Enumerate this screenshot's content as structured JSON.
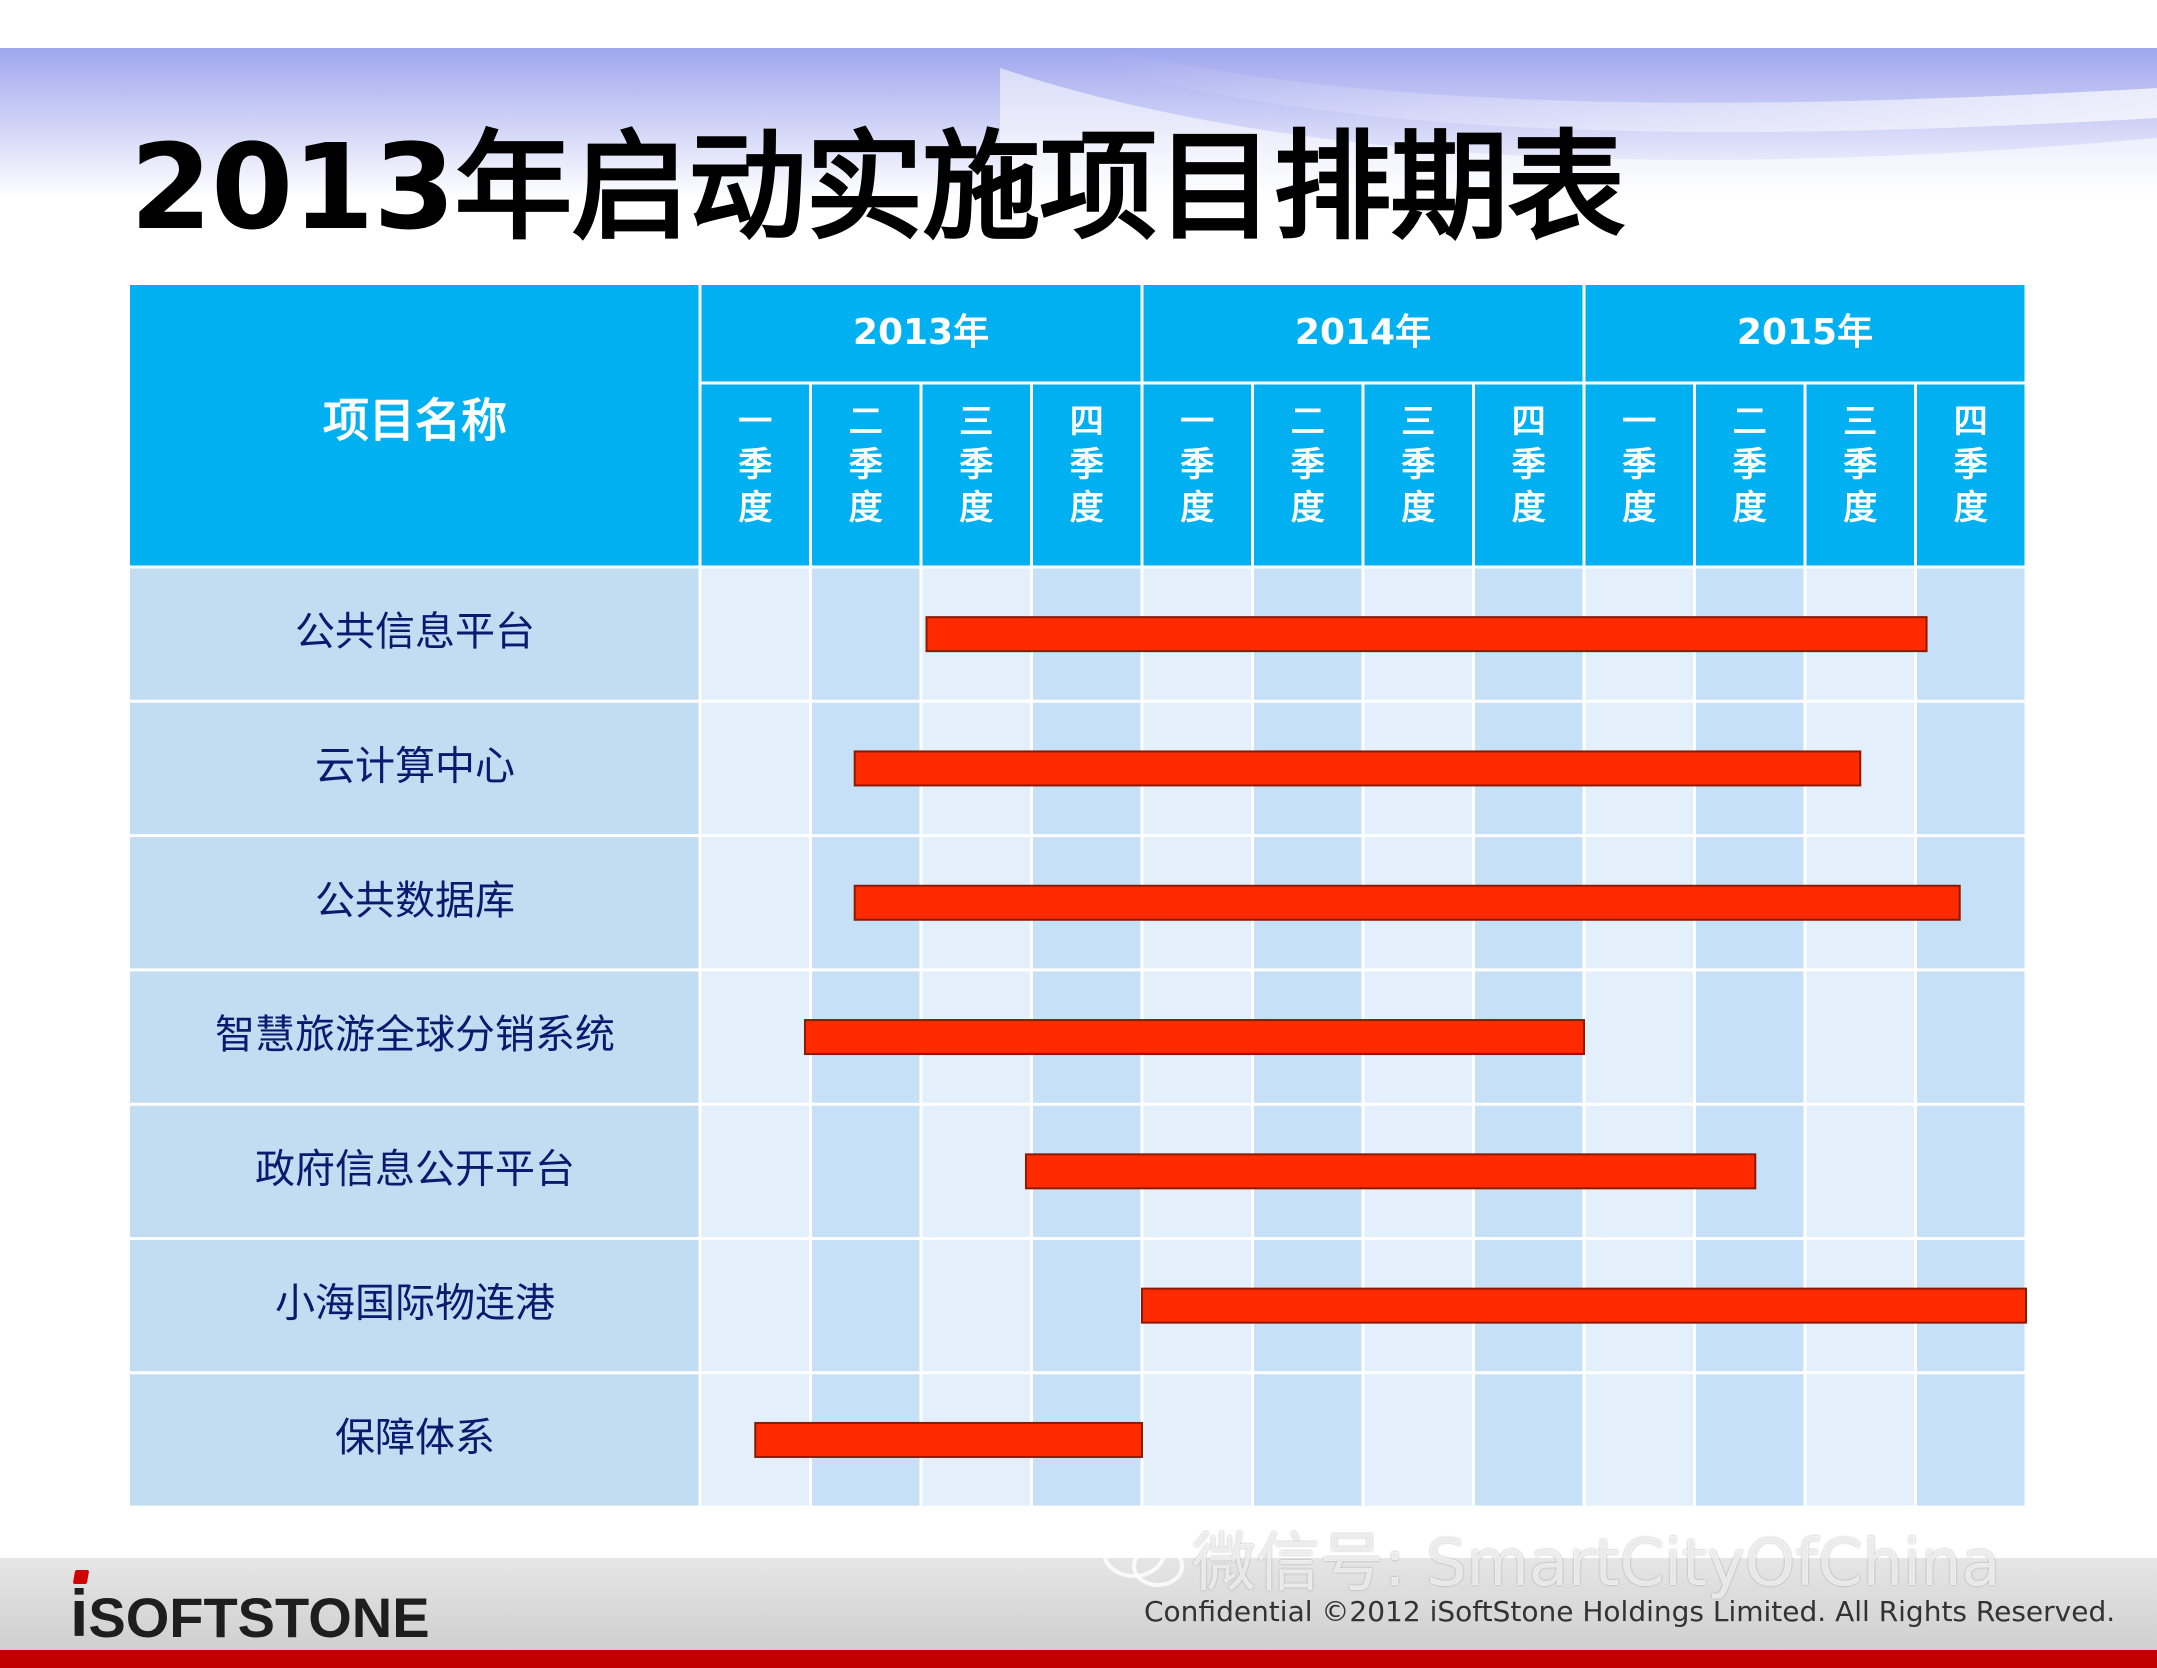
{
  "slide": {
    "title": "2013年启动实施项目排期表",
    "footer_text": "Confidential ©2012 iSoftStone Holdings Limited. All Rights Reserved.",
    "watermark": "微信号: SmartCityOfChina",
    "logo_text": "iSOFTSTONE"
  },
  "colors": {
    "header": "#00b0f0",
    "band_light": "#e3f0fb",
    "band_dark": "#c6e0f7",
    "label_col": "#c2dcf2",
    "bar": "#ff2a00",
    "bar_border": "#8b1a00",
    "label_text": "#0a1a6e",
    "footer_accent": "#c00000"
  },
  "chart_data": {
    "type": "gantt",
    "title": "2013年启动实施项目排期表",
    "row_header": "项目名称",
    "years": [
      "2013年",
      "2014年",
      "2015年"
    ],
    "quarters": [
      "一季度",
      "二季度",
      "三季度",
      "四季度",
      "一季度",
      "二季度",
      "三季度",
      "四季度",
      "一季度",
      "二季度",
      "三季度",
      "四季度"
    ],
    "time_unit": "quarter index from 2013 Q1 start (0 = start of 2013 Q1, 12 = end of 2015 Q4)",
    "tasks": [
      {
        "name": "公共信息平台",
        "start": 2.05,
        "end": 11.1
      },
      {
        "name": "云计算中心",
        "start": 1.4,
        "end": 10.5
      },
      {
        "name": "公共数据库",
        "start": 1.4,
        "end": 11.4
      },
      {
        "name": "智慧旅游全球分销系统",
        "start": 0.95,
        "end": 8.0
      },
      {
        "name": "政府信息公开平台",
        "start": 2.95,
        "end": 9.55
      },
      {
        "name": "小海国际物连港",
        "start": 4.0,
        "end": 12.0
      },
      {
        "name": "保障体系",
        "start": 0.5,
        "end": 4.0
      }
    ]
  }
}
